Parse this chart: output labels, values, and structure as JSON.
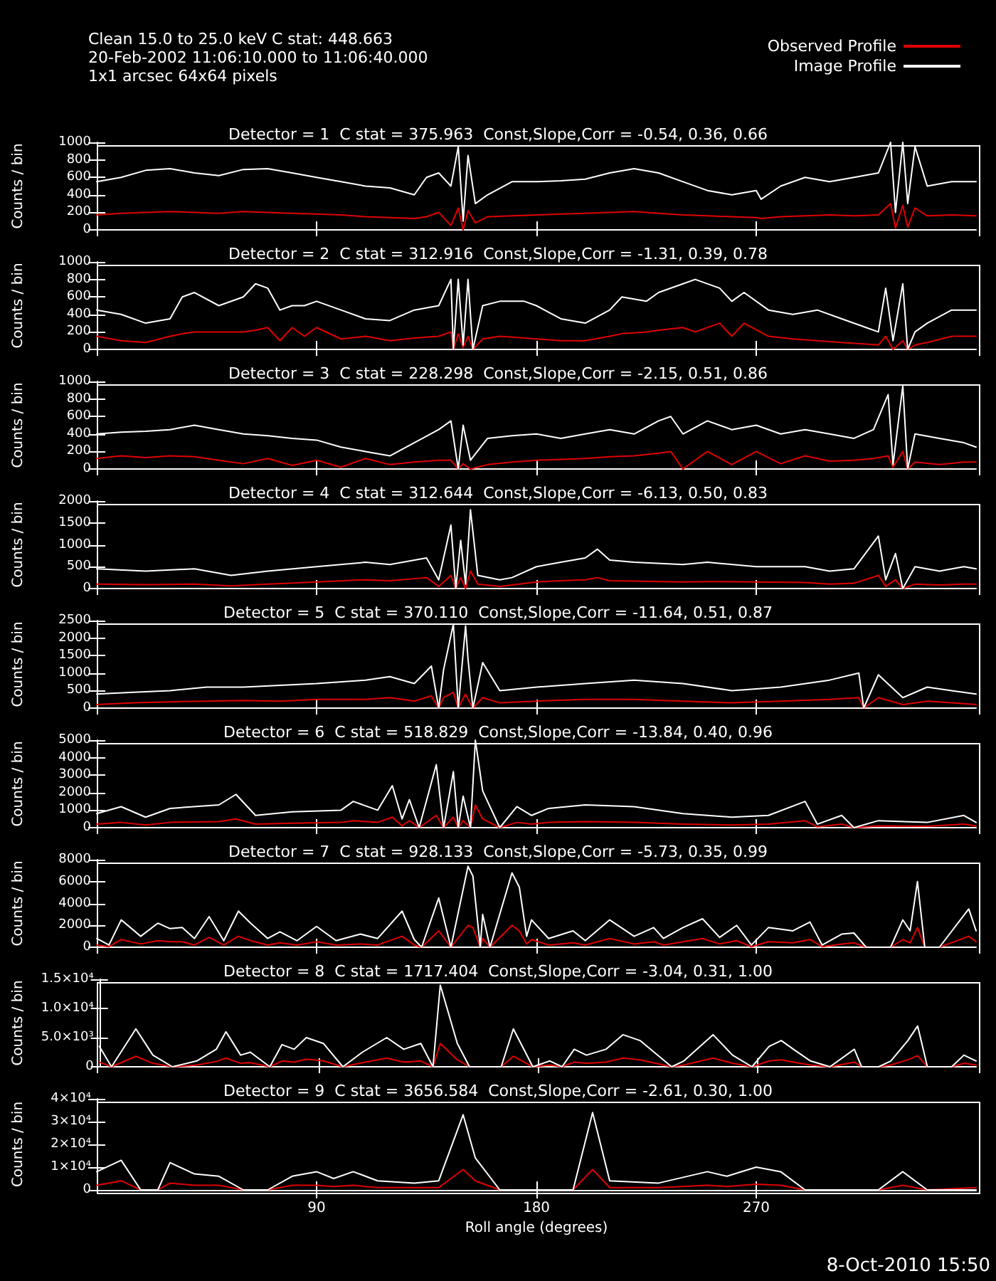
{
  "chart_data": [
    {
      "type": "line",
      "title": "Detector = 1  C stat = 375.963  Const,Slope,Corr = -0.54, 0.36, 0.66",
      "ylabel": "Counts / bin",
      "tick_labels": "y",
      "legend": "top right",
      "annotations": [
        "Clean 15.0 to 25.0 keV C stat: 448.663",
        "20-Feb-2002 11:06:10.000 to 11:06:40.000",
        "1x1 arcsec 64x64 pixels"
      ],
      "xlim": [
        0,
        360
      ],
      "xticks": [
        90,
        180,
        270
      ],
      "ylim": [
        0,
        1000
      ],
      "yticks": [
        0,
        200,
        400,
        600,
        800,
        1000
      ],
      "x": [
        0,
        10,
        20,
        30,
        40,
        50,
        60,
        70,
        80,
        90,
        100,
        110,
        120,
        130,
        135,
        140,
        145,
        148,
        150,
        152,
        155,
        160,
        170,
        180,
        190,
        200,
        210,
        220,
        230,
        240,
        250,
        260,
        270,
        272,
        280,
        290,
        300,
        310,
        320,
        325,
        327,
        330,
        332,
        335,
        340,
        350,
        360
      ],
      "series": [
        {
          "name": "Observed Profile",
          "color": "#e00000",
          "values": [
            170,
            190,
            200,
            210,
            200,
            190,
            210,
            200,
            190,
            180,
            170,
            150,
            140,
            130,
            150,
            200,
            50,
            250,
            0,
            220,
            80,
            150,
            160,
            170,
            180,
            190,
            200,
            210,
            190,
            170,
            160,
            150,
            140,
            130,
            150,
            160,
            170,
            160,
            170,
            300,
            20,
            280,
            30,
            250,
            160,
            170,
            160
          ]
        },
        {
          "name": "Image Profile",
          "color": "#ffffff",
          "values": [
            550,
            600,
            680,
            700,
            650,
            620,
            690,
            700,
            650,
            600,
            550,
            500,
            480,
            400,
            600,
            650,
            500,
            950,
            100,
            850,
            300,
            400,
            550,
            550,
            560,
            580,
            650,
            700,
            650,
            550,
            450,
            400,
            450,
            350,
            500,
            600,
            550,
            600,
            650,
            1000,
            200,
            1000,
            300,
            950,
            500,
            550,
            550
          ]
        }
      ]
    },
    {
      "type": "line",
      "title": "Detector = 2  C stat = 312.916  Const,Slope,Corr = -1.31, 0.39, 0.78",
      "ylabel": "Counts / bin",
      "tick_labels": "y",
      "xlim": [
        0,
        360
      ],
      "xticks": [
        90,
        180,
        270
      ],
      "ylim": [
        0,
        1000
      ],
      "yticks": [
        0,
        200,
        400,
        600,
        800,
        1000
      ],
      "x": [
        0,
        10,
        20,
        30,
        35,
        40,
        50,
        60,
        65,
        70,
        75,
        80,
        85,
        90,
        100,
        110,
        120,
        130,
        140,
        145,
        146,
        148,
        150,
        152,
        154,
        158,
        165,
        175,
        180,
        190,
        200,
        210,
        215,
        225,
        230,
        240,
        245,
        255,
        260,
        265,
        275,
        285,
        295,
        305,
        315,
        320,
        323,
        326,
        330,
        332,
        335,
        340,
        350,
        360
      ],
      "series": [
        {
          "color": "#e00000",
          "values": [
            150,
            100,
            80,
            150,
            180,
            200,
            200,
            200,
            220,
            250,
            100,
            250,
            150,
            250,
            120,
            150,
            100,
            130,
            150,
            200,
            0,
            180,
            20,
            150,
            0,
            120,
            150,
            130,
            120,
            100,
            100,
            150,
            180,
            200,
            220,
            250,
            200,
            300,
            150,
            300,
            150,
            120,
            100,
            80,
            60,
            50,
            150,
            0,
            100,
            0,
            50,
            80,
            150,
            150
          ]
        },
        {
          "color": "#ffffff",
          "values": [
            450,
            400,
            300,
            350,
            600,
            650,
            500,
            600,
            750,
            700,
            450,
            500,
            500,
            550,
            450,
            350,
            330,
            450,
            500,
            800,
            0,
            800,
            50,
            800,
            0,
            500,
            550,
            550,
            500,
            350,
            300,
            450,
            600,
            550,
            650,
            750,
            800,
            700,
            550,
            650,
            450,
            400,
            450,
            350,
            250,
            200,
            700,
            100,
            750,
            0,
            200,
            300,
            450,
            450
          ]
        }
      ]
    },
    {
      "type": "line",
      "title": "Detector = 3  C stat = 228.298  Const,Slope,Corr = -2.15, 0.51, 0.86",
      "ylabel": "Counts / bin",
      "tick_labels": "y",
      "xlim": [
        0,
        360
      ],
      "xticks": [
        90,
        180,
        270
      ],
      "ylim": [
        0,
        1000
      ],
      "yticks": [
        0,
        200,
        400,
        600,
        800,
        1000
      ],
      "x": [
        0,
        10,
        20,
        30,
        40,
        50,
        60,
        70,
        80,
        90,
        100,
        110,
        120,
        130,
        140,
        145,
        148,
        150,
        153,
        160,
        170,
        180,
        190,
        200,
        210,
        220,
        230,
        235,
        240,
        250,
        260,
        270,
        280,
        290,
        300,
        310,
        318,
        324,
        326,
        330,
        332,
        335,
        345,
        355,
        360
      ],
      "series": [
        {
          "color": "#e00000",
          "values": [
            120,
            150,
            130,
            150,
            140,
            100,
            60,
            120,
            40,
            100,
            20,
            120,
            50,
            80,
            100,
            100,
            0,
            60,
            0,
            50,
            80,
            100,
            110,
            120,
            140,
            150,
            180,
            200,
            0,
            200,
            50,
            200,
            60,
            150,
            90,
            100,
            120,
            150,
            20,
            200,
            0,
            80,
            50,
            80,
            80
          ]
        },
        {
          "color": "#ffffff",
          "values": [
            400,
            420,
            430,
            450,
            500,
            450,
            400,
            380,
            350,
            330,
            250,
            200,
            150,
            300,
            450,
            550,
            0,
            500,
            100,
            350,
            380,
            400,
            350,
            400,
            450,
            400,
            550,
            600,
            400,
            550,
            450,
            500,
            400,
            450,
            400,
            350,
            450,
            850,
            50,
            950,
            0,
            400,
            350,
            300,
            250
          ]
        }
      ]
    },
    {
      "type": "line",
      "title": "Detector = 4  C stat = 312.644  Const,Slope,Corr = -6.13, 0.50, 0.83",
      "ylabel": "Counts / bin",
      "tick_labels": "y",
      "xlim": [
        0,
        360
      ],
      "xticks": [
        90,
        180,
        270
      ],
      "ylim": [
        0,
        2000
      ],
      "yticks": [
        0,
        500,
        1000,
        1500,
        2000
      ],
      "x": [
        0,
        20,
        40,
        55,
        70,
        90,
        110,
        120,
        135,
        140,
        145,
        147,
        149,
        151,
        153,
        156,
        165,
        170,
        180,
        190,
        200,
        205,
        210,
        220,
        240,
        250,
        270,
        290,
        300,
        310,
        320,
        323,
        327,
        330,
        335,
        345,
        355,
        360
      ],
      "series": [
        {
          "color": "#e00000",
          "values": [
            100,
            90,
            100,
            60,
            100,
            150,
            200,
            180,
            250,
            50,
            300,
            0,
            250,
            0,
            400,
            100,
            50,
            80,
            150,
            180,
            200,
            250,
            180,
            170,
            150,
            160,
            150,
            140,
            100,
            120,
            300,
            50,
            200,
            0,
            100,
            80,
            100,
            100
          ]
        },
        {
          "color": "#ffffff",
          "values": [
            450,
            400,
            450,
            300,
            400,
            500,
            600,
            550,
            700,
            200,
            1450,
            0,
            1100,
            100,
            1800,
            300,
            200,
            250,
            500,
            600,
            700,
            900,
            650,
            600,
            550,
            600,
            500,
            500,
            400,
            450,
            1200,
            200,
            800,
            0,
            500,
            400,
            500,
            450
          ]
        }
      ]
    },
    {
      "type": "line",
      "title": "Detector = 5  C stat = 370.110  Const,Slope,Corr = -11.64, 0.51, 0.87",
      "ylabel": "Counts / bin",
      "tick_labels": "y",
      "xlim": [
        0,
        360
      ],
      "xticks": [
        90,
        180,
        270
      ],
      "ylim": [
        0,
        2500
      ],
      "yticks": [
        0,
        500,
        1000,
        1500,
        2000,
        2500
      ],
      "x": [
        0,
        15,
        30,
        45,
        60,
        75,
        90,
        110,
        120,
        130,
        137,
        140,
        142,
        146,
        148,
        151,
        152,
        154,
        158,
        165,
        180,
        200,
        220,
        240,
        260,
        280,
        300,
        312,
        314,
        320,
        330,
        340,
        350,
        360
      ],
      "series": [
        {
          "color": "#e00000",
          "values": [
            100,
            150,
            180,
            200,
            220,
            200,
            250,
            250,
            300,
            200,
            350,
            0,
            300,
            450,
            0,
            400,
            250,
            0,
            300,
            150,
            200,
            250,
            250,
            200,
            150,
            200,
            250,
            300,
            0,
            300,
            100,
            200,
            150,
            100
          ]
        },
        {
          "color": "#ffffff",
          "values": [
            400,
            450,
            500,
            600,
            600,
            650,
            700,
            800,
            900,
            700,
            1200,
            0,
            1100,
            2400,
            0,
            2350,
            1400,
            0,
            1300,
            500,
            600,
            700,
            800,
            700,
            500,
            600,
            800,
            1000,
            0,
            950,
            300,
            600,
            500,
            400
          ]
        }
      ]
    },
    {
      "type": "line",
      "title": "Detector = 6  C stat = 518.829  Const,Slope,Corr = -13.84, 0.40, 0.96",
      "ylabel": "Counts / bin",
      "tick_labels": "y",
      "xlim": [
        0,
        360
      ],
      "xticks": [
        90,
        180,
        270
      ],
      "ylim": [
        0,
        5000
      ],
      "yticks": [
        0,
        1000,
        2000,
        3000,
        4000,
        5000
      ],
      "x": [
        0,
        10,
        20,
        30,
        50,
        57,
        65,
        80,
        100,
        105,
        115,
        121,
        125,
        128,
        132,
        139,
        142,
        146,
        148,
        150,
        153,
        155,
        158,
        165,
        172,
        178,
        185,
        200,
        220,
        240,
        260,
        275,
        290,
        295,
        305,
        310,
        320,
        340,
        355,
        360
      ],
      "series": [
        {
          "color": "#e00000",
          "values": [
            200,
            300,
            150,
            300,
            350,
            500,
            200,
            250,
            300,
            400,
            300,
            600,
            100,
            400,
            0,
            700,
            0,
            600,
            0,
            400,
            0,
            1300,
            500,
            0,
            300,
            200,
            300,
            350,
            300,
            200,
            150,
            200,
            400,
            50,
            200,
            0,
            100,
            80,
            200,
            100
          ]
        },
        {
          "color": "#ffffff",
          "values": [
            800,
            1200,
            600,
            1100,
            1300,
            1900,
            700,
            900,
            1000,
            1500,
            1000,
            2400,
            500,
            1600,
            0,
            3600,
            0,
            3200,
            0,
            1800,
            0,
            5000,
            2100,
            0,
            1200,
            700,
            1100,
            1300,
            1200,
            800,
            600,
            700,
            1500,
            200,
            700,
            0,
            400,
            300,
            700,
            300
          ]
        }
      ]
    },
    {
      "type": "line",
      "title": "Detector = 7  C stat = 928.133  Const,Slope,Corr = -5.73, 0.35, 0.99",
      "ylabel": "Counts / bin",
      "tick_labels": "y",
      "xlim": [
        0,
        360
      ],
      "xticks": [
        90,
        180,
        270
      ],
      "ylim": [
        0,
        8000
      ],
      "yticks": [
        0,
        2000,
        4000,
        6000,
        8000
      ],
      "x": [
        0,
        5,
        10,
        18,
        25,
        30,
        35,
        40,
        46,
        52,
        58,
        63,
        70,
        75,
        82,
        90,
        98,
        108,
        115,
        125,
        130,
        133,
        140,
        145,
        152,
        154,
        157,
        158,
        161,
        170,
        173,
        176,
        178,
        185,
        195,
        200,
        210,
        220,
        228,
        232,
        240,
        248,
        255,
        262,
        268,
        275,
        285,
        292,
        297,
        305,
        310,
        315,
        325,
        330,
        333,
        336,
        339,
        345,
        357,
        360
      ],
      "series": [
        {
          "color": "#e00000",
          "values": [
            200,
            50,
            700,
            300,
            600,
            500,
            500,
            200,
            900,
            200,
            1000,
            600,
            200,
            400,
            200,
            500,
            200,
            300,
            200,
            1000,
            200,
            0,
            1500,
            0,
            2000,
            1800,
            0,
            800,
            0,
            2000,
            1500,
            300,
            700,
            200,
            400,
            200,
            800,
            300,
            500,
            200,
            500,
            800,
            300,
            600,
            50,
            500,
            400,
            700,
            50,
            300,
            400,
            0,
            0,
            700,
            400,
            1800,
            0,
            0,
            1000,
            500
          ]
        },
        {
          "color": "#ffffff",
          "values": [
            800,
            200,
            2500,
            1000,
            2200,
            1700,
            1800,
            800,
            2800,
            600,
            3300,
            2200,
            800,
            1400,
            600,
            1900,
            600,
            1200,
            800,
            3300,
            700,
            0,
            4500,
            0,
            7400,
            6500,
            0,
            3000,
            0,
            6800,
            5500,
            1000,
            2500,
            800,
            1500,
            600,
            2500,
            1000,
            1800,
            800,
            1800,
            2600,
            900,
            2000,
            200,
            1800,
            1500,
            2300,
            200,
            1200,
            1300,
            0,
            0,
            2500,
            1500,
            6000,
            0,
            0,
            3500,
            1500
          ]
        }
      ]
    },
    {
      "type": "line",
      "title": "Detector = 8  C stat = 1717.404  Const,Slope,Corr = -3.04, 0.31, 1.00",
      "ylabel": "Counts / bin",
      "tick_labels": "y",
      "xlim": [
        0,
        360
      ],
      "xticks": [
        90,
        180,
        270
      ],
      "ylim": [
        0,
        15000
      ],
      "yticks": [
        0,
        {
          "value": 5000,
          "label": "5.0×10³"
        },
        {
          "value": 10000,
          "label": "1.0×10⁴"
        },
        {
          "value": 15000,
          "label": "1.5×10⁴"
        }
      ],
      "x": [
        0,
        5,
        15,
        22,
        30,
        40,
        48,
        52,
        58,
        62,
        70,
        75,
        80,
        85,
        92,
        100,
        108,
        118,
        125,
        132,
        137,
        140,
        147,
        152,
        165,
        170,
        178,
        185,
        190,
        195,
        200,
        208,
        215,
        222,
        235,
        240,
        252,
        260,
        268,
        275,
        280,
        285,
        292,
        300,
        310,
        313,
        320,
        325,
        332,
        336,
        340,
        350,
        355,
        360
      ],
      "series": [
        {
          "color": "#e00000",
          "values": [
            800,
            0,
            1800,
            600,
            0,
            300,
            900,
            1500,
            600,
            700,
            0,
            1000,
            800,
            1300,
            1000,
            0,
            700,
            1500,
            800,
            1000,
            0,
            4000,
            1200,
            0,
            0,
            1800,
            0,
            300,
            0,
            800,
            600,
            800,
            1500,
            1200,
            0,
            300,
            1500,
            600,
            0,
            1000,
            1200,
            800,
            300,
            0,
            800,
            0,
            0,
            300,
            1200,
            1900,
            0,
            0,
            600,
            300
          ]
        },
        {
          "color": "#ffffff",
          "values": [
            3500,
            0,
            6500,
            2000,
            0,
            1000,
            3000,
            6000,
            2000,
            2500,
            0,
            3800,
            3000,
            5000,
            4000,
            0,
            2500,
            5000,
            3000,
            4000,
            0,
            14000,
            4000,
            0,
            0,
            6500,
            0,
            1000,
            0,
            3000,
            2000,
            3000,
            5500,
            4500,
            0,
            1000,
            5500,
            2000,
            0,
            3500,
            4500,
            3000,
            1000,
            0,
            3000,
            0,
            0,
            1000,
            4500,
            7000,
            0,
            0,
            2000,
            1000
          ]
        }
      ]
    },
    {
      "type": "line",
      "title": "Detector = 9  C stat = 3656.584  Const,Slope,Corr = -2.61, 0.30, 1.00",
      "ylabel": "Counts / bin",
      "xlabel": "Roll angle (degrees)",
      "annotations": [
        "8-Oct-2010 15:50"
      ],
      "xlim": [
        0,
        360
      ],
      "xticks": [
        90,
        180,
        270
      ],
      "ylim": [
        0,
        40000
      ],
      "yticks": [
        0,
        {
          "value": 10000,
          "label": "1×10⁴"
        },
        {
          "value": 20000,
          "label": "2×10⁴"
        },
        {
          "value": 30000,
          "label": "3×10⁴"
        },
        {
          "value": 40000,
          "label": "4×10⁴"
        }
      ],
      "x": [
        0,
        10,
        18,
        25,
        30,
        40,
        50,
        60,
        70,
        80,
        90,
        97,
        105,
        115,
        130,
        140,
        150,
        155,
        165,
        195,
        203,
        210,
        230,
        250,
        258,
        270,
        280,
        290,
        320,
        330,
        340,
        360
      ],
      "series": [
        {
          "color": "#e00000",
          "values": [
            2000,
            4000,
            0,
            0,
            3000,
            2000,
            2000,
            0,
            0,
            2000,
            2000,
            1500,
            2000,
            1000,
            1000,
            1000,
            9000,
            4000,
            0,
            0,
            9000,
            1000,
            1000,
            2000,
            1500,
            2500,
            2000,
            0,
            0,
            2000,
            0,
            1000
          ]
        },
        {
          "color": "#ffffff",
          "values": [
            8000,
            13000,
            0,
            0,
            12000,
            7000,
            6000,
            0,
            0,
            6000,
            8000,
            5000,
            8000,
            4000,
            3000,
            4000,
            33000,
            14000,
            0,
            0,
            34000,
            4000,
            3000,
            8000,
            6000,
            10000,
            8000,
            0,
            0,
            8000,
            0,
            0
          ]
        }
      ]
    }
  ]
}
